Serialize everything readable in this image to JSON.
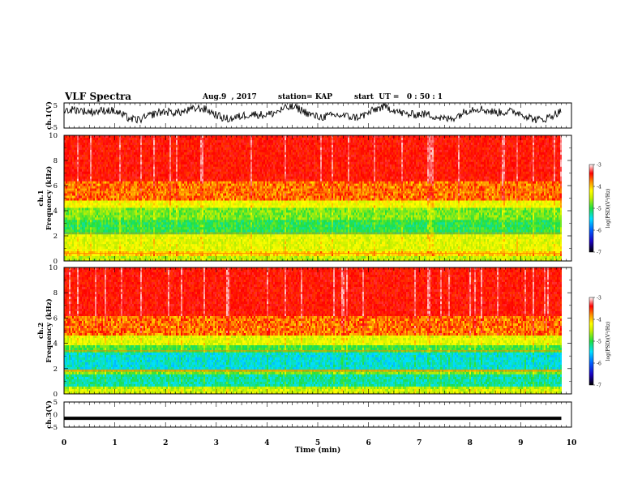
{
  "header": {
    "title": "VLF Spectra",
    "date": "Aug.9  , 2017",
    "station": "station= KAP",
    "start": "start  UT =   0 : 50 : 1"
  },
  "chart_data": [
    {
      "type": "line",
      "panel": "ch1-waveform",
      "ylabel": "ch.1(V)",
      "ylim": [
        -5,
        5
      ],
      "yticks": [
        "5",
        "-5"
      ],
      "xlim": [
        0,
        10
      ],
      "note_series": "noisy signal oscillating roughly between -3 and 5 V"
    },
    {
      "type": "heatmap",
      "panel": "ch1-spectrogram",
      "ylabel": "ch.1\nFrequency  (kHz)",
      "ylim": [
        0,
        10
      ],
      "yticks": [
        "0",
        "2",
        "4",
        "6",
        "8",
        "10"
      ],
      "xlim": [
        0,
        10
      ],
      "green_band_kHz": [
        2.2,
        4.2
      ],
      "red_above_kHz": 4.8,
      "colorbar": {
        "label": "log(PSD)(V²/Hz)",
        "range": [
          -7,
          -3
        ],
        "ticks": [
          "-3",
          "-4",
          "-5",
          "-6",
          "-7"
        ]
      }
    },
    {
      "type": "heatmap",
      "panel": "ch2-spectrogram",
      "ylabel": "ch.2\nFrequency  (kHz)",
      "ylim": [
        0,
        10
      ],
      "yticks": [
        "0",
        "2",
        "4",
        "6",
        "8",
        "10"
      ],
      "xlim": [
        0,
        10
      ],
      "cyan_bands_kHz": [
        [
          0.5,
          1.5
        ],
        [
          2.0,
          3.2
        ]
      ],
      "red_above_kHz": 4.6,
      "colorbar": {
        "label": "log(PSD)(V²/Hz)",
        "range": [
          -7,
          -3
        ],
        "ticks": [
          "-3",
          "-4",
          "-5",
          "-6",
          "-7"
        ]
      }
    },
    {
      "type": "line",
      "panel": "ch3-waveform",
      "ylabel": "ch.3(V)",
      "ylim": [
        -5,
        5
      ],
      "yticks": [
        "5",
        "0",
        "-5"
      ],
      "xlim": [
        0,
        10
      ],
      "constant_value": -1.5
    }
  ],
  "xaxis": {
    "label": "Time  (min)",
    "ticks": [
      "0",
      "1",
      "2",
      "3",
      "4",
      "5",
      "6",
      "7",
      "8",
      "9",
      "10"
    ]
  }
}
